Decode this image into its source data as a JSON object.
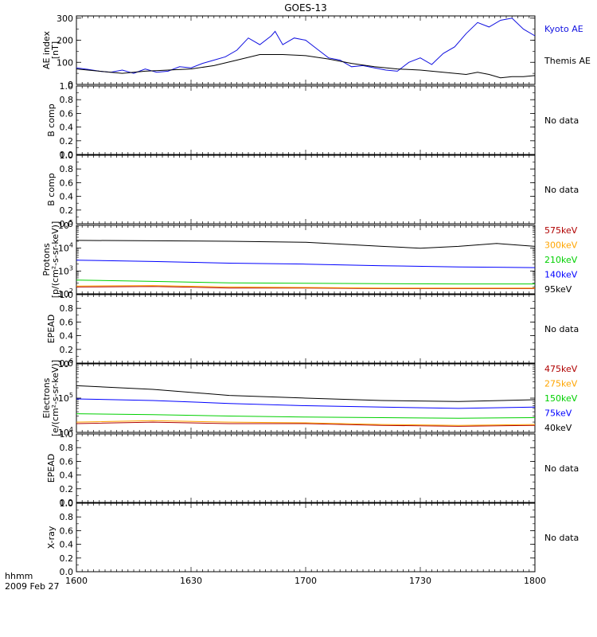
{
  "title": "GOES-13",
  "footer": {
    "line1": "hhmm",
    "line2": "2009 Feb 27"
  },
  "colors": {
    "kyoto": "#1010e0",
    "themis": "#000000",
    "p575": "#b00000",
    "p300": "#ffa500",
    "p210": "#00d000",
    "p140": "#0000ff",
    "p95": "#000000",
    "e475": "#b00000",
    "e275": "#ffa500",
    "e150": "#00d000",
    "e75": "#0000ff",
    "e40": "#000000"
  },
  "chart_data": [
    {
      "id": "ae",
      "type": "line",
      "ylabel": [
        "AE index",
        "[nT]"
      ],
      "xlim": [
        0,
        120
      ],
      "ylim": [
        0,
        310
      ],
      "yticks": [
        0,
        100,
        200,
        300
      ],
      "series": [
        {
          "name": "Kyoto AE",
          "color": "kyoto",
          "x": [
            0,
            3,
            6,
            9,
            12,
            15,
            18,
            21,
            24,
            27,
            30,
            33,
            36,
            39,
            42,
            45,
            48,
            51,
            52,
            54,
            57,
            60,
            63,
            66,
            69,
            72,
            75,
            78,
            81,
            84,
            87,
            90,
            93,
            96,
            99,
            102,
            105,
            108,
            111,
            114,
            117,
            120
          ],
          "y": [
            75,
            68,
            60,
            55,
            65,
            50,
            70,
            55,
            60,
            80,
            75,
            95,
            110,
            125,
            155,
            210,
            180,
            220,
            240,
            180,
            210,
            200,
            160,
            120,
            110,
            80,
            85,
            75,
            65,
            60,
            100,
            120,
            90,
            140,
            170,
            230,
            280,
            260,
            290,
            300,
            250,
            220
          ]
        },
        {
          "name": "Themis AE",
          "color": "themis",
          "x": [
            0,
            6,
            12,
            18,
            24,
            30,
            36,
            42,
            48,
            54,
            60,
            66,
            72,
            78,
            84,
            90,
            96,
            102,
            105,
            108,
            111,
            114,
            117,
            120
          ],
          "y": [
            70,
            60,
            50,
            60,
            65,
            70,
            85,
            110,
            135,
            135,
            130,
            115,
            95,
            80,
            70,
            65,
            55,
            45,
            55,
            45,
            30,
            35,
            35,
            40
          ]
        }
      ]
    },
    {
      "id": "b1",
      "type": "line",
      "ylabel": [
        "B comp"
      ],
      "ylim": [
        0,
        1
      ],
      "yticks": [
        0,
        0.2,
        0.4,
        0.6,
        0.8,
        1.0
      ],
      "status": "No data"
    },
    {
      "id": "b2",
      "type": "line",
      "ylabel": [
        "B comp"
      ],
      "ylim": [
        0,
        1
      ],
      "yticks": [
        0,
        0.2,
        0.4,
        0.6,
        0.8,
        1.0
      ],
      "status": "No data"
    },
    {
      "id": "protons",
      "type": "line",
      "ylabel": [
        "Protons",
        "[p/(cm²-s-sr-keV)]"
      ],
      "yscale": "log",
      "ylim": [
        100,
        100000
      ],
      "series": [
        {
          "name": "575keV",
          "color": "p575",
          "x": [
            0,
            20,
            40,
            60,
            80,
            100,
            120
          ],
          "y": [
            200,
            210,
            180,
            180,
            170,
            170,
            170
          ]
        },
        {
          "name": "300keV",
          "color": "p300",
          "x": [
            0,
            20,
            40,
            60,
            80,
            100,
            120
          ],
          "y": [
            220,
            230,
            200,
            190,
            180,
            180,
            180
          ]
        },
        {
          "name": "210keV",
          "color": "p210",
          "x": [
            0,
            20,
            40,
            60,
            80,
            100,
            120
          ],
          "y": [
            400,
            350,
            300,
            290,
            280,
            270,
            270
          ]
        },
        {
          "name": "140keV",
          "color": "p140",
          "x": [
            0,
            20,
            40,
            60,
            80,
            100,
            120
          ],
          "y": [
            3000,
            2600,
            2200,
            2000,
            1700,
            1500,
            1400
          ]
        },
        {
          "name": "95keV",
          "color": "p95",
          "x": [
            0,
            20,
            40,
            60,
            80,
            90,
            100,
            110,
            120
          ],
          "y": [
            22000,
            21000,
            20000,
            18000,
            12000,
            10000,
            12000,
            16000,
            12000
          ]
        }
      ]
    },
    {
      "id": "epead1",
      "type": "line",
      "ylabel": [
        "EPEAD"
      ],
      "ylim": [
        0,
        1
      ],
      "yticks": [
        0,
        0.2,
        0.4,
        0.6,
        0.8,
        1.0
      ],
      "status": "No data"
    },
    {
      "id": "electrons",
      "type": "line",
      "ylabel": [
        "Electrons",
        "[e/(cm²-s-sr-keV)]"
      ],
      "yscale": "log",
      "ylim": [
        10000,
        1000000
      ],
      "series": [
        {
          "name": "475keV",
          "color": "e475",
          "x": [
            0,
            20,
            40,
            60,
            80,
            100,
            120
          ],
          "y": [
            18000,
            20000,
            18000,
            18000,
            16000,
            15000,
            16000
          ]
        },
        {
          "name": "275keV",
          "color": "e275",
          "x": [
            0,
            20,
            40,
            60,
            80,
            100,
            120
          ],
          "y": [
            20000,
            22000,
            20000,
            19000,
            17000,
            16000,
            17000
          ]
        },
        {
          "name": "150keV",
          "color": "e150",
          "x": [
            0,
            20,
            40,
            60,
            80,
            100,
            120
          ],
          "y": [
            35000,
            33000,
            30000,
            28000,
            27000,
            26000,
            27000
          ]
        },
        {
          "name": "75keV",
          "color": "e75",
          "x": [
            0,
            20,
            40,
            60,
            80,
            100,
            120
          ],
          "y": [
            95000,
            85000,
            70000,
            60000,
            55000,
            50000,
            55000
          ]
        },
        {
          "name": "40keV",
          "color": "e40",
          "x": [
            0,
            20,
            40,
            60,
            80,
            100,
            120
          ],
          "y": [
            230000,
            180000,
            120000,
            100000,
            85000,
            80000,
            90000
          ]
        }
      ]
    },
    {
      "id": "epead2",
      "type": "line",
      "ylabel": [
        "EPEAD"
      ],
      "ylim": [
        0,
        1
      ],
      "yticks": [
        0,
        0.2,
        0.4,
        0.6,
        0.8,
        1.0
      ],
      "status": "No data"
    },
    {
      "id": "xray",
      "type": "line",
      "ylabel": [
        "X-ray"
      ],
      "ylim": [
        0,
        1
      ],
      "yticks": [
        0,
        0.2,
        0.4,
        0.6,
        0.8,
        1.0
      ],
      "status": "No data"
    }
  ],
  "xaxis": {
    "ticks": [
      0,
      30,
      60,
      90,
      120
    ],
    "labels": [
      "1600",
      "1630",
      "1700",
      "1730",
      "1800"
    ]
  }
}
